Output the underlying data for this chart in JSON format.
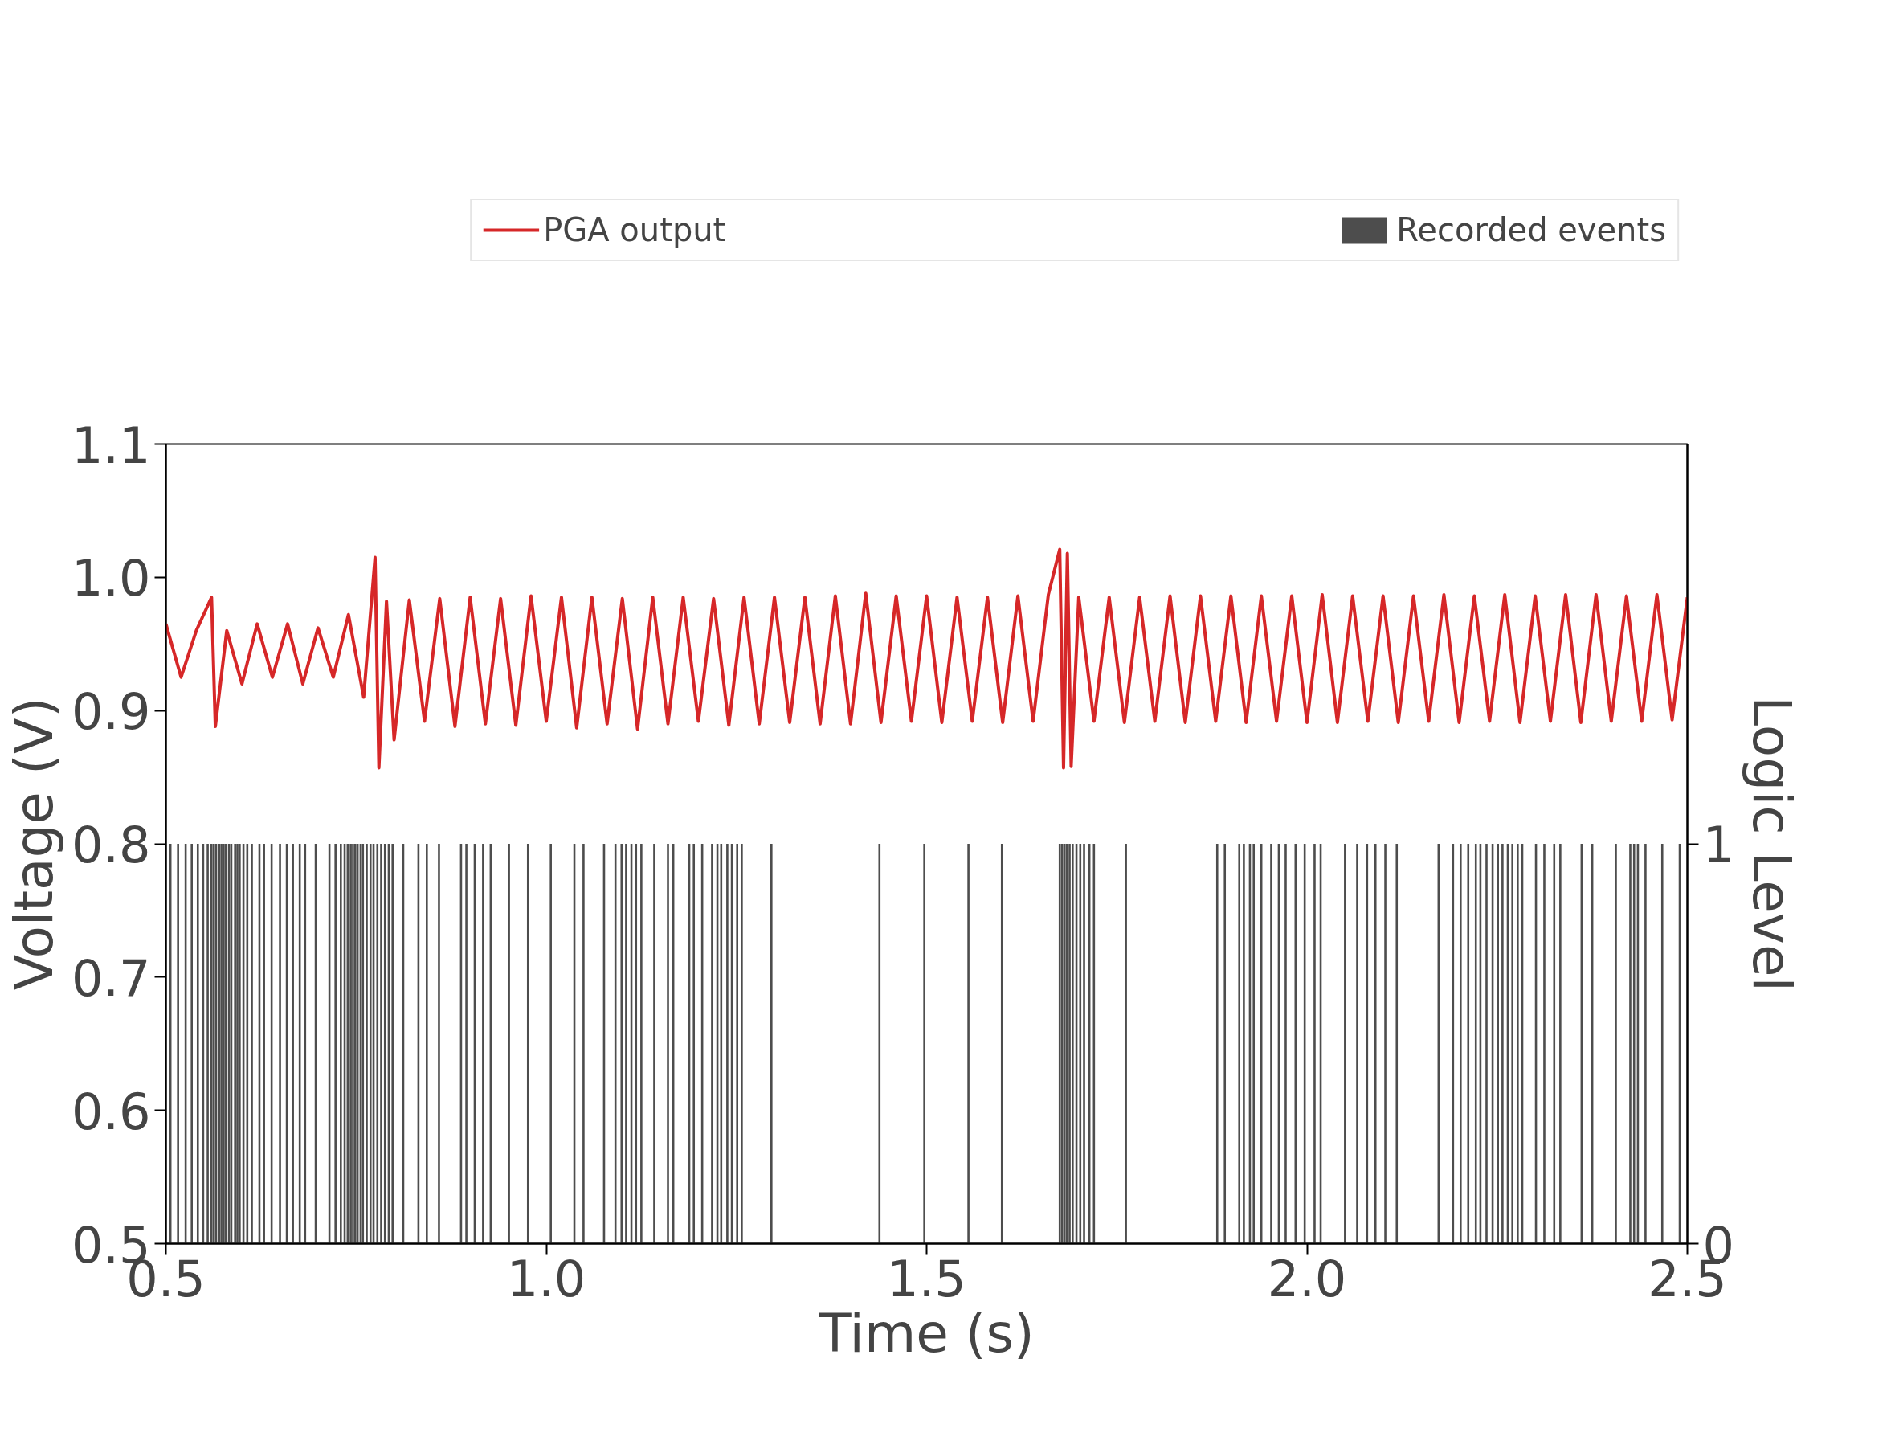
{
  "chart_data": {
    "type": "line",
    "xlabel": "Time (s)",
    "ylabel": "Voltage (V)",
    "y2label": "Logic Level",
    "xlim": [
      0.5,
      2.5
    ],
    "xticks": [
      0.5,
      {
        "value": 1.0,
        "label": "1.0"
      },
      1.5,
      {
        "value": 2.0,
        "label": "2.0"
      },
      2.5
    ],
    "ylim": [
      0.5,
      1.1
    ],
    "yticks": [
      0.5,
      0.6,
      0.7,
      0.8,
      0.9,
      {
        "value": 1.0,
        "label": "1.0"
      },
      1.1
    ],
    "y2lim": [
      0,
      2
    ],
    "y2ticks": [
      0,
      1
    ],
    "grid": false,
    "legend": "top",
    "series": [
      {
        "name": "PGA output",
        "color": "#d62728",
        "x": [
          0.5,
          0.52,
          0.54,
          0.56,
          0.565,
          0.58,
          0.6,
          0.62,
          0.64,
          0.66,
          0.68,
          0.7,
          0.72,
          0.74,
          0.76,
          0.775,
          0.78,
          0.79,
          0.8,
          0.82,
          0.84,
          0.86,
          0.88,
          0.9,
          0.92,
          0.94,
          0.96,
          0.98,
          1.0,
          1.02,
          1.04,
          1.06,
          1.08,
          1.1,
          1.12,
          1.14,
          1.16,
          1.18,
          1.2,
          1.22,
          1.24,
          1.26,
          1.28,
          1.3,
          1.32,
          1.34,
          1.36,
          1.38,
          1.4,
          1.42,
          1.44,
          1.46,
          1.48,
          1.5,
          1.52,
          1.54,
          1.56,
          1.58,
          1.6,
          1.62,
          1.64,
          1.66,
          1.675,
          1.68,
          1.685,
          1.69,
          1.7,
          1.72,
          1.74,
          1.76,
          1.78,
          1.8,
          1.82,
          1.84,
          1.86,
          1.88,
          1.9,
          1.92,
          1.94,
          1.96,
          1.98,
          2.0,
          2.02,
          2.04,
          2.06,
          2.08,
          2.1,
          2.12,
          2.14,
          2.16,
          2.18,
          2.2,
          2.22,
          2.24,
          2.26,
          2.28,
          2.3,
          2.32,
          2.34,
          2.36,
          2.38,
          2.4,
          2.42,
          2.44,
          2.46,
          2.48,
          2.5
        ],
        "values": [
          0.965,
          0.925,
          0.96,
          0.985,
          0.888,
          0.96,
          0.92,
          0.965,
          0.925,
          0.965,
          0.92,
          0.962,
          0.925,
          0.972,
          0.91,
          1.015,
          0.857,
          0.982,
          0.878,
          0.983,
          0.892,
          0.984,
          0.888,
          0.985,
          0.89,
          0.984,
          0.889,
          0.986,
          0.892,
          0.985,
          0.887,
          0.985,
          0.89,
          0.984,
          0.886,
          0.985,
          0.89,
          0.985,
          0.892,
          0.984,
          0.889,
          0.985,
          0.89,
          0.985,
          0.891,
          0.985,
          0.89,
          0.986,
          0.89,
          0.988,
          0.891,
          0.986,
          0.892,
          0.986,
          0.891,
          0.985,
          0.892,
          0.985,
          0.891,
          0.986,
          0.892,
          0.987,
          1.021,
          0.857,
          1.018,
          0.858,
          0.985,
          0.892,
          0.985,
          0.891,
          0.985,
          0.892,
          0.986,
          0.891,
          0.986,
          0.892,
          0.986,
          0.891,
          0.986,
          0.892,
          0.986,
          0.891,
          0.987,
          0.891,
          0.986,
          0.892,
          0.986,
          0.891,
          0.986,
          0.892,
          0.987,
          0.891,
          0.986,
          0.892,
          0.987,
          0.891,
          0.986,
          0.892,
          0.987,
          0.891,
          0.987,
          0.892,
          0.986,
          0.892,
          0.987,
          0.893,
          0.985
        ]
      },
      {
        "name": "Recorded events",
        "type": "bar",
        "axis": "y2",
        "color": "#4d4d4d",
        "x": [
          0.506,
          0.516,
          0.526,
          0.534,
          0.542,
          0.549,
          0.555,
          0.56,
          0.563,
          0.566,
          0.57,
          0.573,
          0.576,
          0.579,
          0.583,
          0.586,
          0.591,
          0.594,
          0.597,
          0.602,
          0.607,
          0.613,
          0.623,
          0.629,
          0.639,
          0.65,
          0.659,
          0.667,
          0.676,
          0.683,
          0.697,
          0.715,
          0.723,
          0.73,
          0.735,
          0.739,
          0.743,
          0.746,
          0.749,
          0.752,
          0.756,
          0.759,
          0.764,
          0.769,
          0.773,
          0.778,
          0.783,
          0.788,
          0.793,
          0.798,
          0.812,
          0.832,
          0.843,
          0.859,
          0.888,
          0.895,
          0.906,
          0.917,
          0.927,
          0.951,
          0.976,
          1.006,
          1.037,
          1.049,
          1.076,
          1.091,
          1.099,
          1.105,
          1.112,
          1.118,
          1.125,
          1.142,
          1.16,
          1.167,
          1.188,
          1.194,
          1.205,
          1.218,
          1.225,
          1.23,
          1.238,
          1.244,
          1.251,
          1.257,
          1.296,
          1.438,
          1.497,
          1.555,
          1.599,
          1.675,
          1.678,
          1.681,
          1.684,
          1.688,
          1.692,
          1.697,
          1.702,
          1.707,
          1.714,
          1.72,
          1.762,
          1.882,
          1.892,
          1.911,
          1.917,
          1.925,
          1.93,
          1.94,
          1.953,
          1.963,
          1.972,
          1.985,
          1.997,
          2.01,
          2.018,
          2.05,
          2.066,
          2.079,
          2.09,
          2.103,
          2.118,
          2.173,
          2.192,
          2.202,
          2.212,
          2.222,
          2.228,
          2.236,
          2.244,
          2.251,
          2.257,
          2.264,
          2.27,
          2.277,
          2.283,
          2.301,
          2.312,
          2.325,
          2.333,
          2.361,
          2.375,
          2.406,
          2.425,
          2.43,
          2.435,
          2.445,
          2.467,
          2.49
        ],
        "values": [
          1,
          1,
          1,
          1,
          1,
          1,
          1,
          1,
          1,
          1,
          1,
          1,
          1,
          1,
          1,
          1,
          1,
          1,
          1,
          1,
          1,
          1,
          1,
          1,
          1,
          1,
          1,
          1,
          1,
          1,
          1,
          1,
          1,
          1,
          1,
          1,
          1,
          1,
          1,
          1,
          1,
          1,
          1,
          1,
          1,
          1,
          1,
          1,
          1,
          1,
          1,
          1,
          1,
          1,
          1,
          1,
          1,
          1,
          1,
          1,
          1,
          1,
          1,
          1,
          1,
          1,
          1,
          1,
          1,
          1,
          1,
          1,
          1,
          1,
          1,
          1,
          1,
          1,
          1,
          1,
          1,
          1,
          1,
          1,
          1,
          1,
          1,
          1,
          1,
          1,
          1,
          1,
          1,
          1,
          1,
          1,
          1,
          1,
          1,
          1,
          1,
          1,
          1,
          1,
          1,
          1,
          1,
          1,
          1,
          1,
          1,
          1,
          1,
          1,
          1,
          1,
          1,
          1,
          1,
          1,
          1,
          1,
          1,
          1,
          1,
          1,
          1,
          1,
          1,
          1,
          1,
          1,
          1,
          1,
          1,
          1,
          1,
          1,
          1,
          1,
          1,
          1,
          1,
          1,
          1,
          1,
          1,
          1
        ]
      }
    ]
  }
}
